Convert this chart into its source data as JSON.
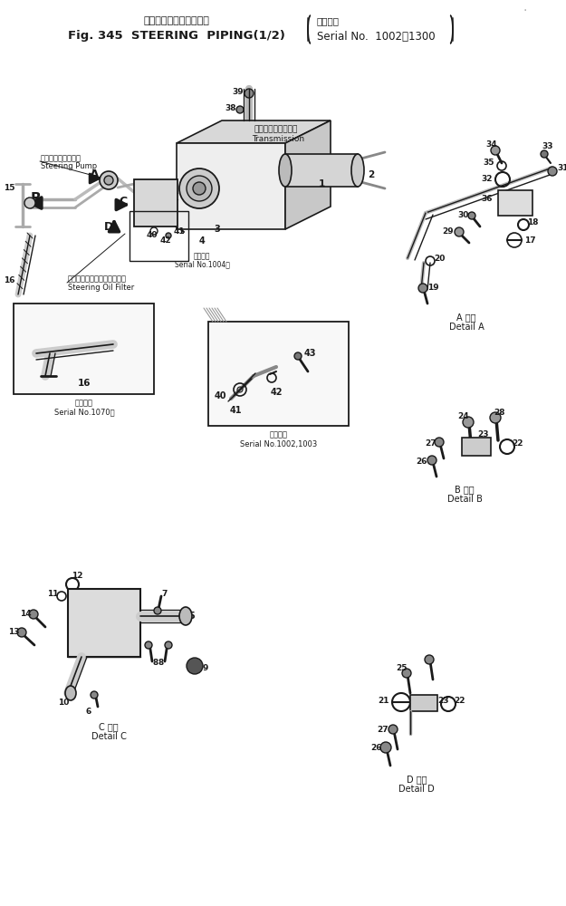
{
  "title_jp": "ステアリングパイピング",
  "title_bracket_jp": "適用号機",
  "title_en": "Fig. 345  STEERING  PIPING(1/2)",
  "title_serial": "Serial No.  1002～1300",
  "bg_color": "#ffffff",
  "fg_color": "#1a1a1a",
  "fig_size": [
    6.25,
    10.0
  ],
  "dpi": 100,
  "labels": {
    "steering_pump_jp": "ステアリングポンプ",
    "steering_pump_en": "Steering Pump",
    "transmission_jp": "トランスミッション",
    "transmission_en": "Transmission",
    "steering_filter_jp": "ステアリングオイルフィルタ",
    "steering_filter_en": "Steering Oil Filter",
    "serial_1070_jp": "適用号機",
    "serial_1070_en": "Serial No.1070～",
    "serial_1004_jp": "適用号機",
    "serial_1004_en": "Serial No.1004～",
    "serial_1002_jp": "適用号機",
    "serial_1002_en": "Serial No.1002,1003",
    "detail_a_jp": "A 詳細",
    "detail_a_en": "Detail A",
    "detail_b_jp": "B 詳細",
    "detail_b_en": "Detail B",
    "detail_c_jp": "C 詳細",
    "detail_c_en": "Detail C",
    "detail_d_jp": "D 詳細",
    "detail_d_en": "Detail D"
  }
}
